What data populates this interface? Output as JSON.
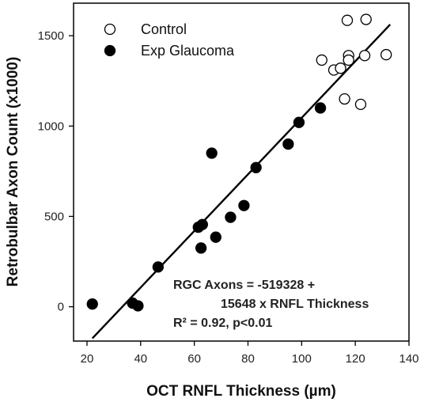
{
  "chart_data": {
    "type": "scatter",
    "xlabel": "OCT RNFL Thickness (µm)",
    "ylabel": "Retrobulbar Axon Count (x1000)",
    "xlim": [
      15,
      140
    ],
    "ylim": [
      -190,
      1680
    ],
    "xticks": [
      20,
      40,
      60,
      80,
      100,
      120,
      140
    ],
    "yticks": [
      0,
      500,
      1000,
      1500
    ],
    "grid": false,
    "legend_position": "top-left",
    "series": [
      {
        "name": "Control",
        "marker": "open-circle",
        "color": "#000000",
        "points": [
          [
            117,
            1585
          ],
          [
            124,
            1590
          ],
          [
            131.5,
            1395
          ],
          [
            123.5,
            1390
          ],
          [
            117.5,
            1390
          ],
          [
            117.5,
            1365
          ],
          [
            107.5,
            1365
          ],
          [
            112,
            1310
          ],
          [
            114.5,
            1320
          ],
          [
            116,
            1150
          ],
          [
            122,
            1120
          ]
        ]
      },
      {
        "name": "Exp Glaucoma",
        "marker": "filled-circle",
        "color": "#000000",
        "points": [
          [
            22,
            15
          ],
          [
            37,
            20
          ],
          [
            39,
            5
          ],
          [
            46.5,
            220
          ],
          [
            61.5,
            440
          ],
          [
            63,
            455
          ],
          [
            62.5,
            325
          ],
          [
            68,
            385
          ],
          [
            73.5,
            495
          ],
          [
            78.5,
            560
          ],
          [
            66.5,
            850
          ],
          [
            83,
            770
          ],
          [
            95,
            900
          ],
          [
            99,
            1020
          ],
          [
            107,
            1100
          ]
        ]
      }
    ],
    "regression": {
      "intercept": -519328,
      "slope": 15648,
      "x_range": [
        22,
        133
      ],
      "color": "#000000"
    },
    "annotations": [
      "RGC Axons = -519328 +",
      "15648 x RNFL Thickness",
      "R² = 0.92, p<0.01"
    ]
  }
}
